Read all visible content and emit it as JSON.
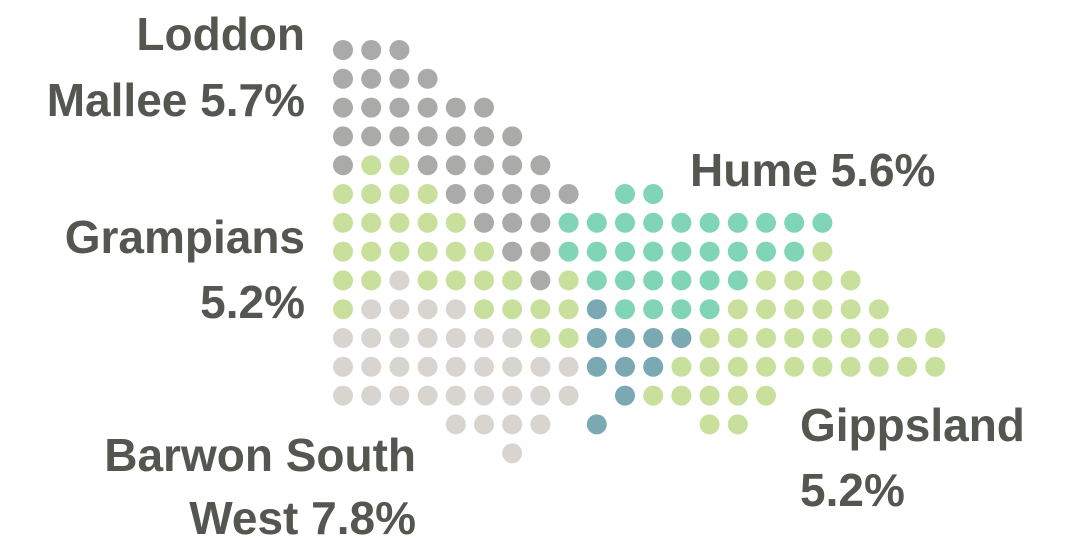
{
  "regions": [
    {
      "lines": [
        "Loddon",
        "Mallee 5.7%"
      ]
    },
    {
      "lines": [
        "Grampians",
        "5.2%"
      ]
    },
    {
      "lines": [
        "Hume 5.6%"
      ]
    },
    {
      "lines": [
        "Gippsland",
        "5.2%"
      ]
    },
    {
      "lines": [
        "Barwon South",
        "West 7.8%"
      ]
    }
  ]
}
